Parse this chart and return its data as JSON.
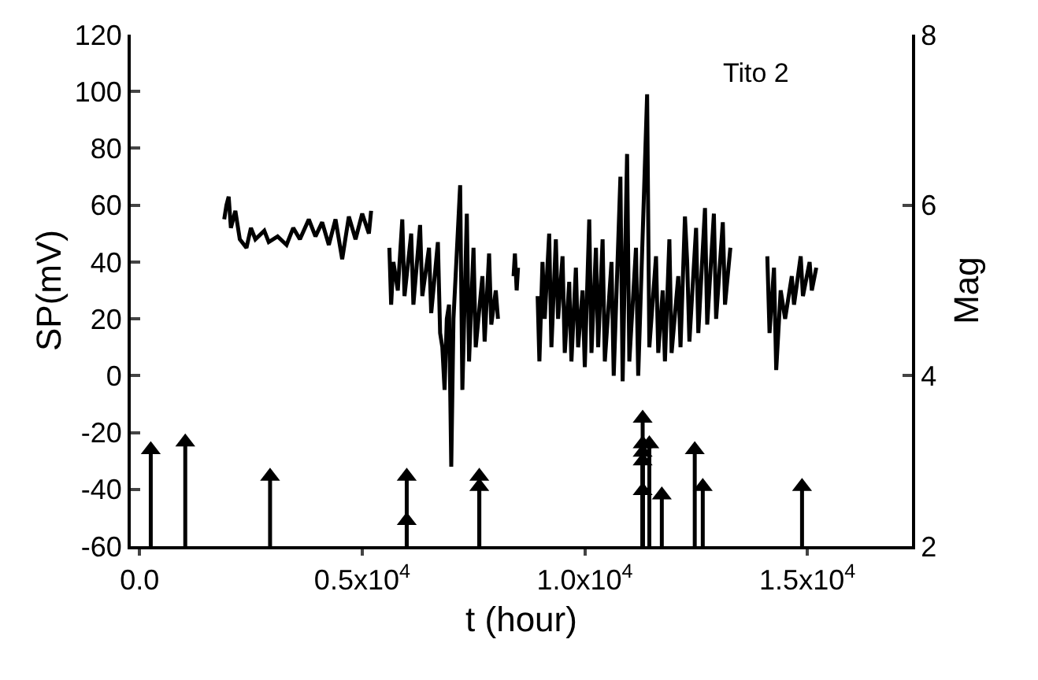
{
  "chart_data": {
    "type": "line",
    "xlabel": "t (hour)",
    "ylabel": "SP(mV)",
    "y2label": "Mag",
    "annotations": [
      "Tito 2"
    ],
    "xlim": [
      -200,
      17350
    ],
    "xticks": [
      {
        "value": 0,
        "label": "0.0"
      },
      {
        "value": 5000,
        "label": "0.5x10$^{4}$"
      },
      {
        "value": 10000,
        "label": "1.0x10$^{4}$"
      },
      {
        "value": 15000,
        "label": "1.5x10$^{4}$"
      }
    ],
    "ylim": [
      -60,
      120
    ],
    "yticks": [
      -60,
      -40,
      -20,
      0,
      20,
      40,
      60,
      80,
      100,
      120
    ],
    "y2lim": [
      2,
      8
    ],
    "y2ticks": [
      2,
      4,
      6,
      8
    ],
    "grid": false,
    "series": [
      {
        "color": "#000000",
        "line_style": "solid",
        "marker": "none",
        "x": [
          1900,
          1950,
          2000,
          2050,
          2150,
          2250,
          2400,
          2500,
          2600,
          2800,
          2900,
          3100,
          3300,
          3450,
          3600,
          3800,
          3950,
          4100,
          4250,
          4400,
          4550,
          4700,
          4850,
          5000,
          5150,
          5200,
          5400,
          5610,
          5650,
          5700,
          5800,
          5900,
          5950,
          6100,
          6150,
          6300,
          6350,
          6500,
          6550,
          6700,
          6750,
          6800,
          6850,
          6900,
          6950,
          7000,
          7050,
          7200,
          7250,
          7350,
          7400,
          7500,
          7550,
          7700,
          7750,
          7850,
          7900,
          8000,
          8050,
          8200,
          8400,
          8430,
          8470,
          8500,
          8700,
          8940,
          8980,
          9050,
          9100,
          9200,
          9250,
          9350,
          9400,
          9500,
          9550,
          9650,
          9700,
          9800,
          9850,
          9950,
          10000,
          10100,
          10150,
          10250,
          10300,
          10400,
          10450,
          10600,
          10650,
          10800,
          10850,
          10950,
          11000,
          11150,
          11200,
          11400,
          11450,
          11600,
          11650,
          11750,
          11800,
          11900,
          11950,
          12100,
          12150,
          12250,
          12300,
          12350,
          12500,
          12550,
          12700,
          12750,
          12900,
          12950,
          13100,
          13150,
          13270,
          13700,
          14100,
          14150,
          14250,
          14300,
          14400,
          14500,
          14650,
          14700,
          14850,
          14900,
          15050,
          15100,
          15200
        ],
        "values": [
          55,
          60,
          63,
          52,
          58,
          48,
          45,
          52,
          48,
          51,
          47,
          49,
          46,
          52,
          48,
          55,
          49,
          54,
          46,
          55,
          41,
          56,
          48,
          57,
          50,
          58,
          null,
          45,
          25,
          40,
          30,
          55,
          28,
          50,
          25,
          53,
          28,
          45,
          22,
          47,
          15,
          10,
          -5,
          20,
          25,
          -32,
          20,
          67,
          -5,
          57,
          5,
          45,
          10,
          35,
          12,
          43,
          18,
          30,
          20,
          null,
          35,
          43,
          30,
          38,
          null,
          28,
          5,
          40,
          20,
          50,
          10,
          48,
          20,
          42,
          8,
          33,
          5,
          38,
          10,
          30,
          3,
          55,
          8,
          45,
          10,
          48,
          5,
          40,
          0,
          70,
          -2,
          78,
          5,
          45,
          0,
          99,
          10,
          42,
          8,
          30,
          5,
          48,
          8,
          35,
          10,
          56,
          40,
          12,
          52,
          15,
          59,
          18,
          57,
          20,
          54,
          25,
          45,
          null,
          42,
          15,
          38,
          2,
          30,
          20,
          35,
          25,
          42,
          28,
          40,
          30,
          38
        ]
      },
      {
        "type": "lollipop",
        "axis": "y2",
        "color": "#000000",
        "marker": "triangle",
        "x": [
          250,
          1025,
          2930,
          6000,
          6000,
          7630,
          7630,
          11300,
          11300,
          11300,
          11300,
          11300,
          11450,
          11730,
          12470,
          12650,
          14880
        ],
        "values": [
          3.13,
          3.22,
          2.82,
          2.82,
          2.3,
          2.82,
          2.7,
          3.5,
          3.2,
          3.1,
          3.0,
          2.65,
          3.2,
          2.6,
          3.13,
          2.7,
          2.7
        ]
      }
    ]
  }
}
